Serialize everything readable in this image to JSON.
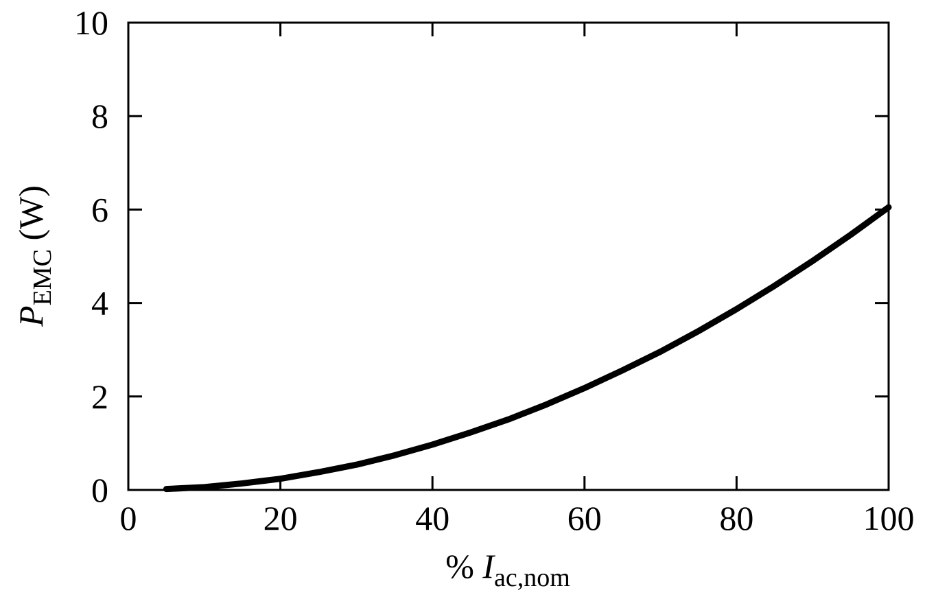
{
  "chart_data": {
    "type": "line",
    "xlabel": [
      "% ",
      "I",
      "ac,nom"
    ],
    "ylabel": [
      "P",
      "EMC",
      " (W)"
    ],
    "x": [
      5,
      10,
      15,
      20,
      25,
      30,
      35,
      40,
      45,
      50,
      55,
      60,
      65,
      70,
      75,
      80,
      85,
      90,
      95,
      100
    ],
    "series": [
      {
        "color": "#000000",
        "values": [
          0.02,
          0.06,
          0.14,
          0.24,
          0.38,
          0.54,
          0.74,
          0.97,
          1.23,
          1.51,
          1.83,
          2.18,
          2.56,
          2.96,
          3.4,
          3.87,
          4.37,
          4.9,
          5.46,
          6.05
        ]
      }
    ],
    "xlim": [
      0,
      100
    ],
    "xticks": [
      0,
      20,
      40,
      60,
      80,
      100
    ],
    "ylim": [
      0,
      10
    ],
    "yticks": [
      0,
      2,
      4,
      6,
      8,
      10
    ],
    "grid": false
  }
}
